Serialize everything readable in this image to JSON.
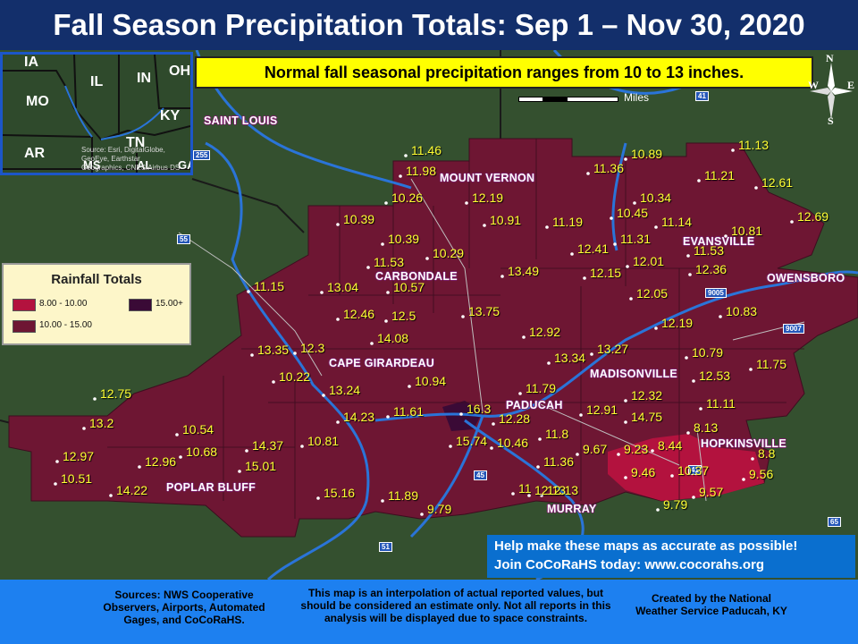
{
  "title": "Fall Season Precipitation Totals: Sep 1 – Nov 30, 2020",
  "normal_banner": "Normal fall seasonal precipitation ranges from 10 to 13 inches.",
  "scale_label": "Miles",
  "compass": {
    "n": "N",
    "s": "S",
    "e": "E",
    "w": "W"
  },
  "inset": {
    "states": [
      "IA",
      "IL",
      "IN",
      "OH",
      "MO",
      "KY",
      "AR",
      "TN",
      "MS",
      "AL",
      "GA"
    ],
    "credit": "Source: Esri, DigitalGlobe, GeoEye, Earthstar Geographics, CNES/Airbus DS"
  },
  "legend": {
    "title": "Rainfall Totals",
    "items": [
      {
        "label": "8.00 - 10.00",
        "color": "#b3123e"
      },
      {
        "label": "10.00 - 15.00",
        "color": "#6e1633"
      },
      {
        "label": "15.00+",
        "color": "#3a0a36"
      }
    ]
  },
  "cities": [
    "SAINT LOUIS",
    "MOUNT VERNON",
    "CARBONDALE",
    "CAPE GIRARDEAU",
    "PADUCAH",
    "POPLAR BLUFF",
    "MURRAY",
    "EVANSVILLE",
    "OWENSBORO",
    "MADISONVILLE",
    "HOPKINSVILLE"
  ],
  "highway_shields": [
    "255",
    "55",
    "41",
    "9005",
    "9007",
    "45",
    "41",
    "51",
    "65"
  ],
  "observations": [
    "11.46",
    "11.98",
    "10.26",
    "12.19",
    "10.39",
    "10.39",
    "10.91",
    "10.29",
    "11.53",
    "13.04",
    "10.57",
    "11.15",
    "12.46",
    "12.5",
    "14.08",
    "13.75",
    "13.49",
    "11.36",
    "10.89",
    "11.13",
    "11.21",
    "12.61",
    "10.34",
    "10.45",
    "11.19",
    "11.14",
    "10.81",
    "12.69",
    "11.31",
    "12.41",
    "12.01",
    "11.53",
    "12.36",
    "12.15",
    "12.05",
    "12.19",
    "10.83",
    "12.92",
    "13.27",
    "13.34",
    "10.79",
    "12.53",
    "11.75",
    "13.35",
    "12.3",
    "10.22",
    "13.24",
    "10.94",
    "14.23",
    "11.61",
    "16.3",
    "12.28",
    "11.79",
    "12.32",
    "11.11",
    "12.91",
    "14.75",
    "8.13",
    "15.74",
    "10.46",
    "11.8",
    "9.67",
    "9.23",
    "8.44",
    "8.8",
    "12.75",
    "13.2",
    "10.54",
    "10.68",
    "14.37",
    "10.81",
    "15.01",
    "12.97",
    "12.96",
    "10.51",
    "14.22",
    "15.16",
    "11.89",
    "9.79",
    "11.36",
    "9.46",
    "10.37",
    "9.56",
    "12.13",
    "11",
    "12.13",
    "9.57",
    "9.79"
  ],
  "promo": {
    "line1": "Help make these maps as accurate as possible!",
    "line2": "Join CoCoRaHS today: www.cocorahs.org"
  },
  "footer": {
    "sources": "Sources: NWS Cooperative Observers, Airports, Automated Gages, and CoCoRaHS.",
    "disclaimer": "This map is an interpolation of actual reported values, but should be considered an estimate only. Not all reports in this analysis will be displayed due to space constraints.",
    "credit": "Created by the National Weather Service Paducah, KY"
  },
  "colors": {
    "title_bg": "#132f6b",
    "region_fill": "#6e1633",
    "low_fill": "#b3123e",
    "high_fill": "#3a0a36",
    "value_text": "#ffff33",
    "river": "#2a74d8"
  }
}
